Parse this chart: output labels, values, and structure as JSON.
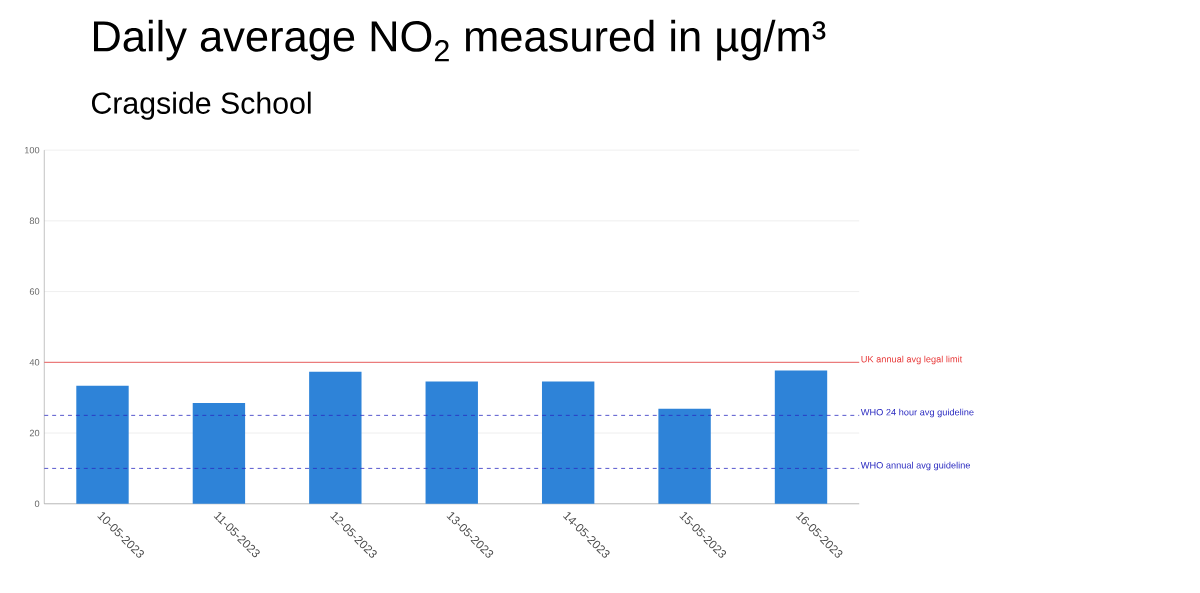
{
  "chart_data": {
    "type": "bar",
    "title": "Daily average NO$_{2}$ measured in µg/m³",
    "subtitle": "Cragside School",
    "categories": [
      "10-05-2023",
      "11-05-2023",
      "12-05-2023",
      "13-05-2023",
      "14-05-2023",
      "15-05-2023",
      "16-05-2023"
    ],
    "values": [
      33.4,
      28.5,
      37.3,
      34.6,
      34.6,
      26.9,
      37.7
    ],
    "color": "#2e83d8",
    "ylim": [
      0,
      100
    ],
    "yticks": [
      0,
      20,
      40,
      60,
      80,
      100
    ],
    "grid": "y",
    "ref_lines": [
      {
        "axis": "y",
        "value": 40,
        "label": "UK annual avg legal limit",
        "color": "#e83a3a",
        "line_style": "solid"
      },
      {
        "axis": "y",
        "value": 25,
        "label": "WHO 24 hour avg guideline",
        "color": "#2a2ac0",
        "line_style": "dashed"
      },
      {
        "axis": "y",
        "value": 10,
        "label": "WHO annual avg guideline",
        "color": "#2a2ac0",
        "line_style": "dashed"
      }
    ]
  }
}
